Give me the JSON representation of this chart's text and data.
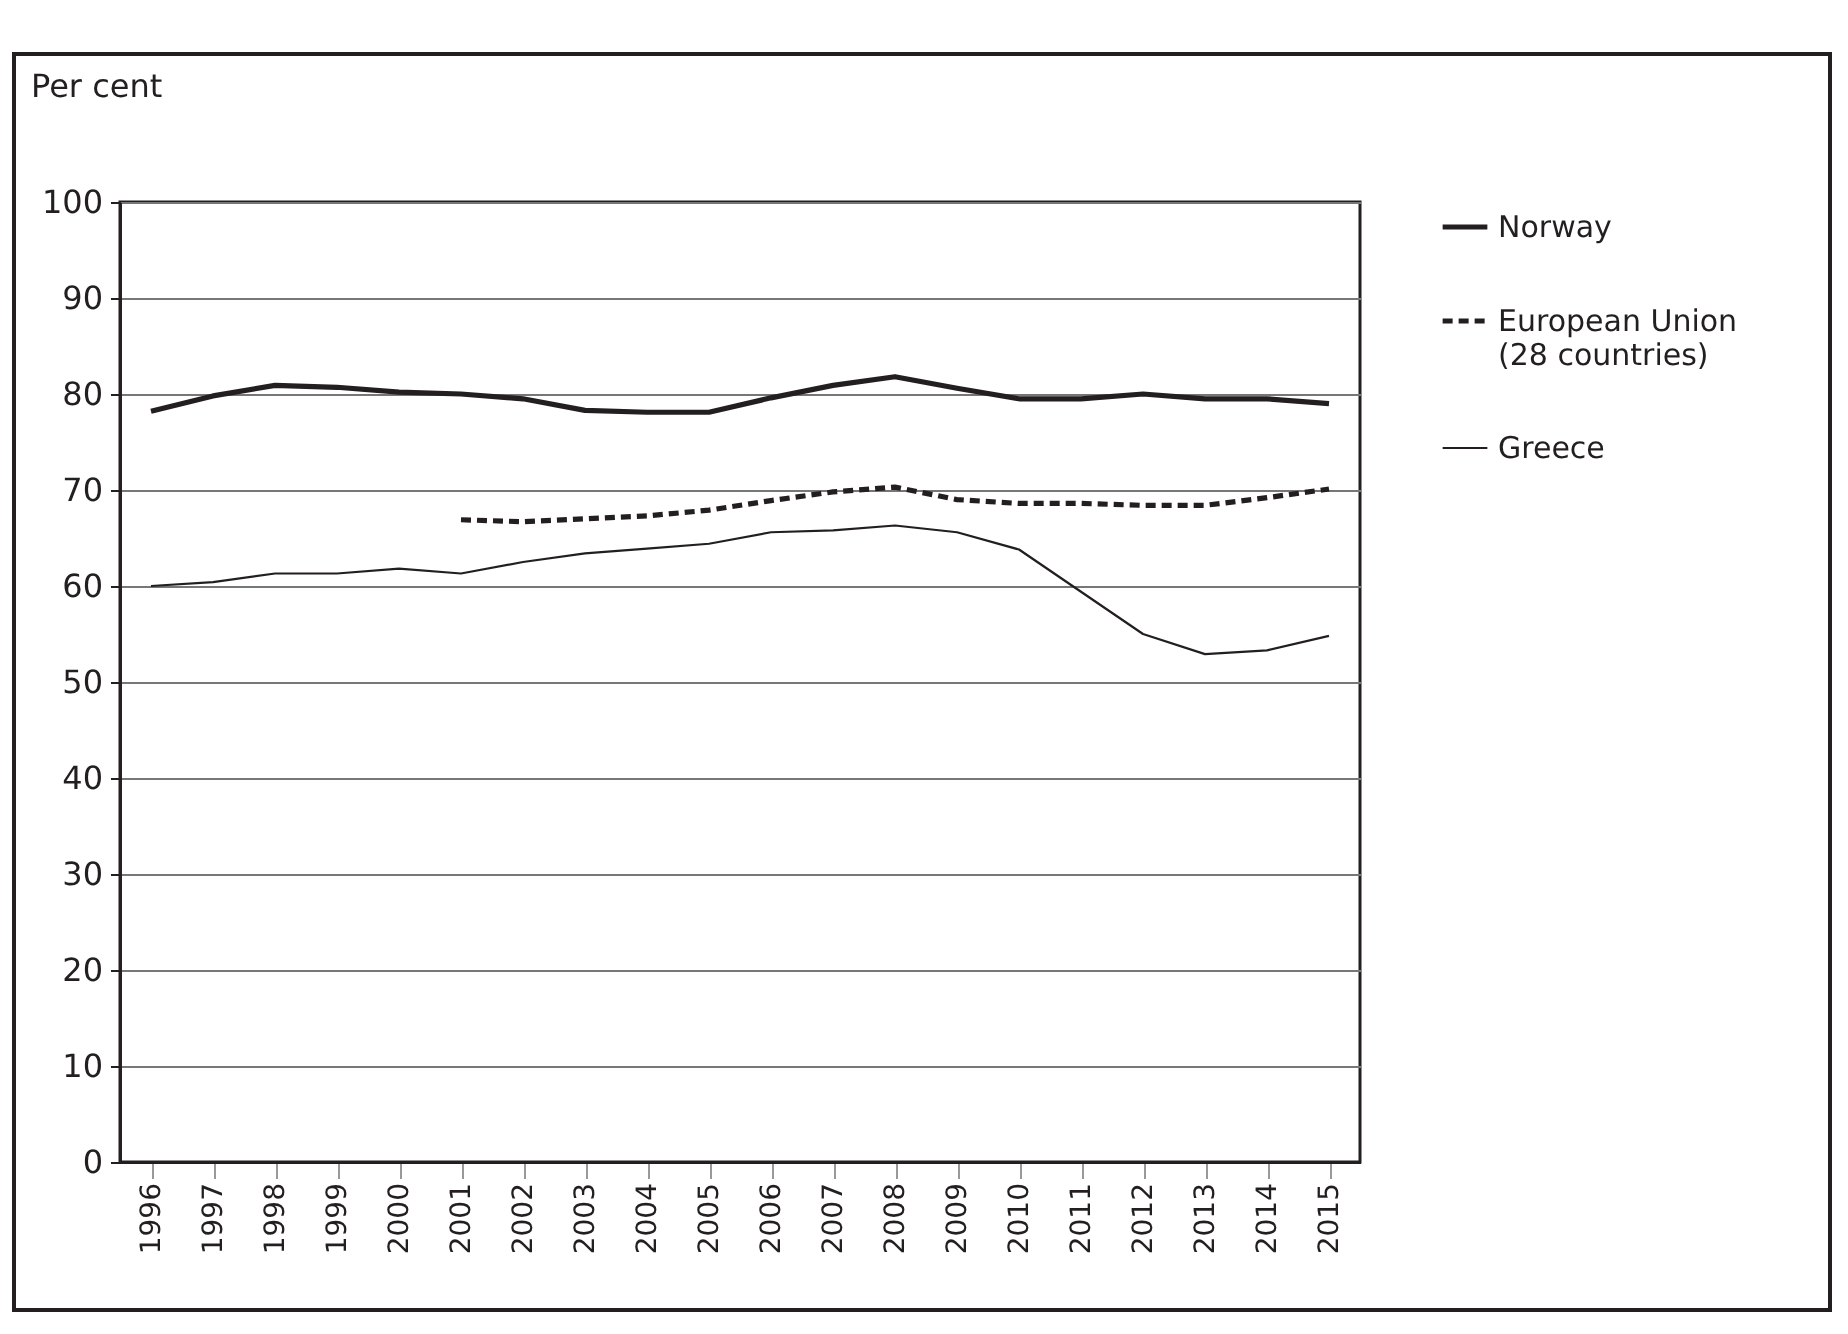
{
  "chart_data": {
    "type": "line",
    "ylabel": "Per cent",
    "categories": [
      "1996",
      "1997",
      "1998",
      "1999",
      "2000",
      "2001",
      "2002",
      "2003",
      "2004",
      "2005",
      "2006",
      "2007",
      "2008",
      "2009",
      "2010",
      "2011",
      "2012",
      "2013",
      "2014",
      "2015"
    ],
    "series": [
      {
        "name": "Norway",
        "color": "#231f20",
        "line_style": "solid",
        "values": [
          78.2,
          79.8,
          80.9,
          80.7,
          80.2,
          80.0,
          79.5,
          78.3,
          78.1,
          78.1,
          79.6,
          80.9,
          81.8,
          80.6,
          79.5,
          79.5,
          80.0,
          79.5,
          79.5,
          79.0
        ]
      },
      {
        "name": "European Union (28 countries)",
        "color": "#231f20",
        "line_style": "dashed",
        "values": [
          null,
          null,
          null,
          null,
          null,
          66.9,
          66.7,
          67.0,
          67.3,
          67.9,
          68.9,
          69.8,
          70.3,
          69.0,
          68.6,
          68.6,
          68.4,
          68.4,
          69.2,
          70.1
        ]
      },
      {
        "name": "Greece",
        "color": "#231f20",
        "line_style": "solid",
        "values": [
          60.0,
          60.4,
          61.3,
          61.3,
          61.8,
          61.3,
          62.5,
          63.4,
          63.9,
          64.4,
          65.6,
          65.8,
          66.3,
          65.6,
          63.8,
          59.4,
          55.0,
          52.9,
          53.3,
          54.8
        ]
      }
    ],
    "ylim": [
      0,
      100
    ],
    "yticks": [
      0,
      10,
      20,
      30,
      40,
      50,
      60,
      70,
      80,
      90,
      100
    ],
    "grid": "y",
    "legend": "right",
    "marker": "none"
  }
}
